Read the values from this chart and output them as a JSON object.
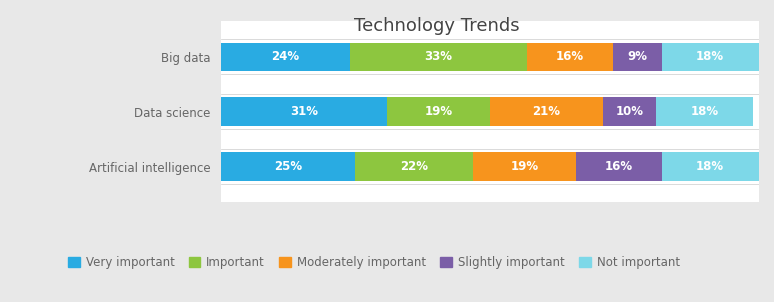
{
  "title": "Technology Trends",
  "categories": [
    "Big data",
    "Data science",
    "Artificial intelligence"
  ],
  "segments": [
    "Very important",
    "Important",
    "Moderately important",
    "Slightly important",
    "Not important"
  ],
  "colors": [
    "#29ABE2",
    "#8DC63F",
    "#F7941D",
    "#7B5EA7",
    "#7DD8E8"
  ],
  "values": [
    [
      24,
      33,
      16,
      9,
      18
    ],
    [
      31,
      19,
      21,
      10,
      18
    ],
    [
      25,
      22,
      19,
      16,
      18
    ]
  ],
  "outer_bg": "#e8e8e8",
  "card_bg": "#ffffff",
  "legend_bg": "#ffffff",
  "bar_height": 0.52,
  "title_fontsize": 13,
  "label_fontsize": 8.5,
  "tick_fontsize": 8.5,
  "legend_fontsize": 8.5,
  "title_color": "#444444",
  "tick_color": "#666666",
  "legend_color": "#666666"
}
